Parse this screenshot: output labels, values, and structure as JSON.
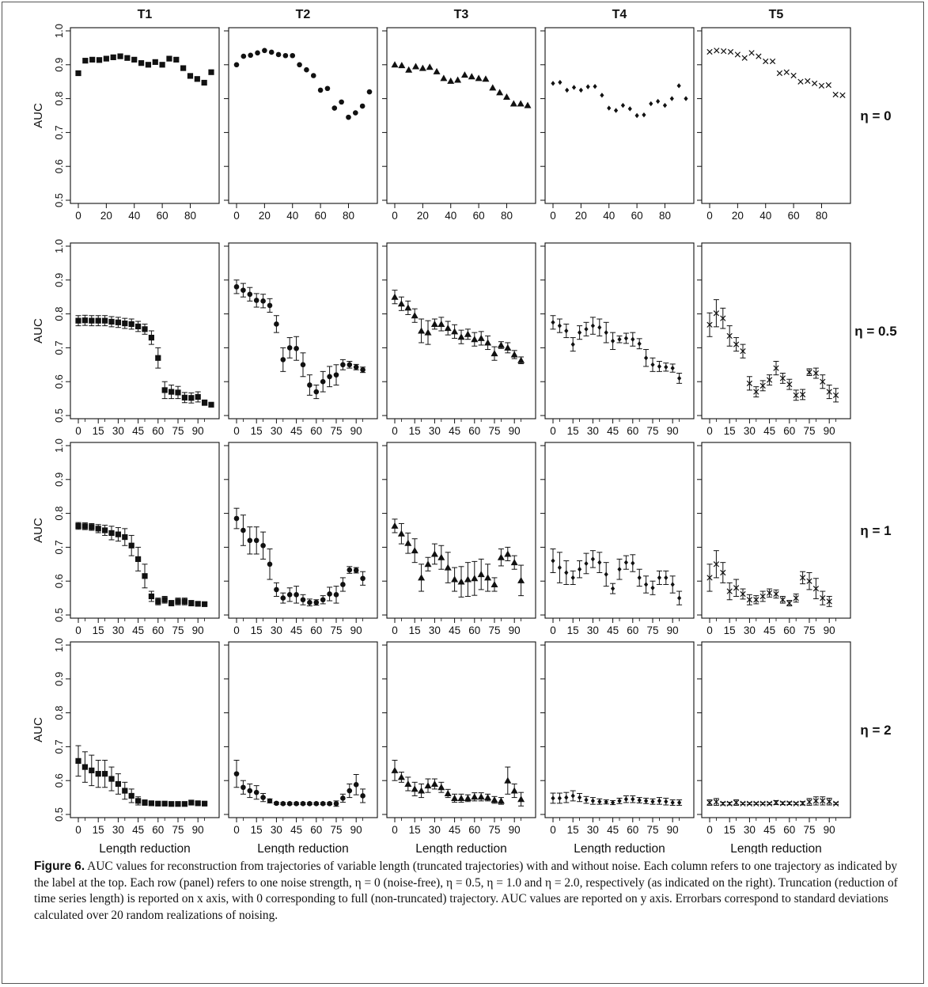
{
  "columns": [
    "T1",
    "T2",
    "T3",
    "T4",
    "T5"
  ],
  "row_labels": [
    "η = 0",
    "η = 0.5",
    "η = 1",
    "η = 2"
  ],
  "ylabel": "AUC",
  "xlabel": "Length reduction",
  "yticks": [
    "0.5",
    "0.6",
    "0.7",
    "0.8",
    "0.9",
    "1.0"
  ],
  "xticks_row0": [
    "0",
    "20",
    "40",
    "60",
    "80"
  ],
  "xticks_other": [
    "0",
    "15",
    "30",
    "45",
    "60",
    "75",
    "90"
  ],
  "caption": {
    "label": "Figure 6.",
    "text": " AUC values for reconstruction from trajectories of variable length (truncated trajectories) with and without noise. Each column refers to one trajectory as indicated by the label at the top. Each row (panel) refers to one noise strength, η = 0 (noise-free), η = 0.5, η = 1.0 and η = 2.0, respectively (as indicated on the right). Truncation (reduction of time series length) is reported on x axis, with 0 corresponding to full (non-truncated) trajectory. AUC values are reported on y axis. Errorbars correspond to standard deviations calculated over 20 random realizations of noising."
  },
  "chart_data": {
    "type": "scatter",
    "ylim": [
      0.5,
      1.0
    ],
    "x_row0": [
      0,
      5,
      10,
      15,
      20,
      25,
      30,
      35,
      40,
      45,
      50,
      55,
      60,
      65,
      70,
      75,
      80,
      85,
      90,
      95
    ],
    "x_other": [
      0,
      5,
      10,
      15,
      20,
      25,
      30,
      35,
      40,
      45,
      50,
      55,
      60,
      65,
      70,
      75,
      80,
      85,
      90,
      95,
      100
    ],
    "markers": [
      "square",
      "circle",
      "triangle",
      "diamond",
      "x"
    ],
    "panels": [
      [
        {
          "y": [
            0.875,
            0.912,
            0.915,
            0.914,
            0.918,
            0.922,
            0.925,
            0.92,
            0.915,
            0.905,
            0.9,
            0.908,
            0.9,
            0.918,
            0.915,
            0.89,
            0.867,
            0.858,
            0.847,
            0.878
          ]
        },
        {
          "y": [
            0.9,
            0.925,
            0.928,
            0.935,
            0.942,
            0.937,
            0.93,
            0.927,
            0.927,
            0.9,
            0.885,
            0.868,
            0.825,
            0.83,
            0.772,
            0.79,
            0.745,
            0.758,
            0.778,
            0.82
          ]
        },
        {
          "y": [
            0.9,
            0.898,
            0.885,
            0.895,
            0.89,
            0.893,
            0.88,
            0.86,
            0.852,
            0.855,
            0.87,
            0.865,
            0.86,
            0.858,
            0.832,
            0.818,
            0.805,
            0.785,
            0.785,
            0.78
          ]
        },
        {
          "y": [
            0.845,
            0.848,
            0.825,
            0.833,
            0.825,
            0.835,
            0.836,
            0.81,
            0.772,
            0.765,
            0.78,
            0.77,
            0.75,
            0.752,
            0.785,
            0.792,
            0.78,
            0.8,
            0.838,
            0.8
          ]
        },
        {
          "y": [
            0.938,
            0.942,
            0.94,
            0.938,
            0.93,
            0.92,
            0.935,
            0.925,
            0.91,
            0.91,
            0.875,
            0.878,
            0.868,
            0.85,
            0.852,
            0.845,
            0.838,
            0.84,
            0.812,
            0.81
          ]
        }
      ],
      [
        {
          "y": [
            0.78,
            0.781,
            0.78,
            0.78,
            0.78,
            0.777,
            0.775,
            0.772,
            0.77,
            0.763,
            0.755,
            0.73,
            0.67,
            0.575,
            0.57,
            0.568,
            0.553,
            0.552,
            0.555,
            0.538,
            0.532
          ],
          "err": [
            0.015,
            0.015,
            0.015,
            0.015,
            0.015,
            0.015,
            0.015,
            0.015,
            0.015,
            0.015,
            0.015,
            0.02,
            0.03,
            0.025,
            0.02,
            0.018,
            0.015,
            0.015,
            0.015,
            0.008,
            0.005
          ]
        },
        {
          "y": [
            0.88,
            0.87,
            0.858,
            0.84,
            0.838,
            0.825,
            0.77,
            0.665,
            0.7,
            0.698,
            0.65,
            0.59,
            0.57,
            0.6,
            0.615,
            0.62,
            0.65,
            0.65,
            0.643,
            0.635
          ],
          "err": [
            0.02,
            0.02,
            0.02,
            0.02,
            0.02,
            0.02,
            0.025,
            0.035,
            0.03,
            0.035,
            0.035,
            0.03,
            0.02,
            0.03,
            0.03,
            0.03,
            0.015,
            0.01,
            0.008,
            0.008
          ]
        },
        {
          "y": [
            0.85,
            0.83,
            0.818,
            0.795,
            0.75,
            0.745,
            0.77,
            0.77,
            0.758,
            0.748,
            0.732,
            0.74,
            0.725,
            0.728,
            0.715,
            0.683,
            0.708,
            0.7,
            0.68,
            0.663
          ],
          "err": [
            0.02,
            0.02,
            0.02,
            0.02,
            0.035,
            0.035,
            0.015,
            0.02,
            0.02,
            0.02,
            0.02,
            0.015,
            0.02,
            0.02,
            0.02,
            0.02,
            0.01,
            0.015,
            0.012,
            0.01
          ]
        },
        {
          "y": [
            0.775,
            0.765,
            0.75,
            0.71,
            0.745,
            0.755,
            0.765,
            0.76,
            0.745,
            0.72,
            0.725,
            0.728,
            0.725,
            0.712,
            0.67,
            0.65,
            0.645,
            0.643,
            0.64,
            0.61
          ],
          "err": [
            0.02,
            0.02,
            0.02,
            0.02,
            0.02,
            0.02,
            0.025,
            0.025,
            0.03,
            0.025,
            0.01,
            0.015,
            0.02,
            0.015,
            0.025,
            0.02,
            0.015,
            0.012,
            0.012,
            0.015
          ]
        },
        {
          "y": [
            0.768,
            0.802,
            0.787,
            0.735,
            0.71,
            0.69,
            0.595,
            0.57,
            0.588,
            0.605,
            0.64,
            0.61,
            0.592,
            0.56,
            0.562,
            0.628,
            0.625,
            0.6,
            0.57,
            0.56
          ],
          "err": [
            0.035,
            0.04,
            0.03,
            0.03,
            0.02,
            0.02,
            0.02,
            0.015,
            0.015,
            0.015,
            0.02,
            0.015,
            0.015,
            0.015,
            0.015,
            0.01,
            0.015,
            0.02,
            0.02,
            0.02
          ]
        }
      ],
      [
        {
          "y": [
            0.763,
            0.762,
            0.76,
            0.755,
            0.75,
            0.742,
            0.738,
            0.73,
            0.705,
            0.665,
            0.615,
            0.555,
            0.54,
            0.545,
            0.535,
            0.54,
            0.54,
            0.535,
            0.533,
            0.532
          ],
          "err": [
            0.01,
            0.01,
            0.01,
            0.012,
            0.015,
            0.02,
            0.02,
            0.025,
            0.03,
            0.035,
            0.035,
            0.015,
            0.01,
            0.01,
            0.008,
            0.01,
            0.01,
            0.008,
            0.005,
            0.004
          ]
        },
        {
          "y": [
            0.785,
            0.75,
            0.72,
            0.72,
            0.705,
            0.65,
            0.575,
            0.55,
            0.56,
            0.56,
            0.545,
            0.537,
            0.537,
            0.545,
            0.562,
            0.56,
            0.59,
            0.633,
            0.632,
            0.608
          ],
          "err": [
            0.03,
            0.045,
            0.04,
            0.04,
            0.04,
            0.045,
            0.02,
            0.015,
            0.02,
            0.025,
            0.015,
            0.01,
            0.008,
            0.012,
            0.02,
            0.025,
            0.02,
            0.01,
            0.008,
            0.02
          ]
        },
        {
          "y": [
            0.763,
            0.74,
            0.712,
            0.69,
            0.61,
            0.65,
            0.68,
            0.67,
            0.64,
            0.605,
            0.598,
            0.605,
            0.608,
            0.62,
            0.61,
            0.59,
            0.67,
            0.68,
            0.655,
            0.602
          ],
          "err": [
            0.02,
            0.03,
            0.03,
            0.035,
            0.04,
            0.02,
            0.03,
            0.035,
            0.045,
            0.035,
            0.045,
            0.05,
            0.05,
            0.045,
            0.04,
            0.02,
            0.025,
            0.02,
            0.02,
            0.045
          ]
        },
        {
          "y": [
            0.66,
            0.64,
            0.625,
            0.61,
            0.635,
            0.652,
            0.665,
            0.655,
            0.62,
            0.578,
            0.635,
            0.655,
            0.653,
            0.61,
            0.59,
            0.58,
            0.61,
            0.61,
            0.59,
            0.55
          ],
          "err": [
            0.035,
            0.045,
            0.035,
            0.02,
            0.025,
            0.03,
            0.025,
            0.03,
            0.035,
            0.015,
            0.03,
            0.02,
            0.025,
            0.025,
            0.025,
            0.02,
            0.02,
            0.02,
            0.025,
            0.02
          ]
        },
        {
          "y": [
            0.61,
            0.65,
            0.625,
            0.57,
            0.58,
            0.562,
            0.545,
            0.545,
            0.555,
            0.565,
            0.562,
            0.545,
            0.535,
            0.55,
            0.61,
            0.6,
            0.578,
            0.55,
            0.54
          ],
          "err": [
            0.04,
            0.04,
            0.03,
            0.025,
            0.025,
            0.015,
            0.015,
            0.012,
            0.015,
            0.012,
            0.012,
            0.01,
            0.008,
            0.012,
            0.018,
            0.025,
            0.03,
            0.02,
            0.015
          ]
        }
      ],
      [
        {
          "y": [
            0.658,
            0.64,
            0.63,
            0.62,
            0.62,
            0.605,
            0.59,
            0.57,
            0.555,
            0.54,
            0.535,
            0.533,
            0.532,
            0.532,
            0.531,
            0.531,
            0.531,
            0.535,
            0.533,
            0.532
          ],
          "err": [
            0.045,
            0.045,
            0.045,
            0.04,
            0.04,
            0.035,
            0.03,
            0.025,
            0.02,
            0.012,
            0.008,
            0.005,
            0.004,
            0.003,
            0.003,
            0.003,
            0.003,
            0.004,
            0.004,
            0.004
          ]
        },
        {
          "y": [
            0.62,
            0.58,
            0.57,
            0.565,
            0.55,
            0.54,
            0.533,
            0.532,
            0.532,
            0.532,
            0.532,
            0.532,
            0.532,
            0.532,
            0.532,
            0.532,
            0.548,
            0.57,
            0.588,
            0.555
          ],
          "err": [
            0.04,
            0.02,
            0.02,
            0.02,
            0.012,
            0.006,
            0.003,
            0.003,
            0.003,
            0.003,
            0.003,
            0.003,
            0.003,
            0.003,
            0.003,
            0.008,
            0.012,
            0.02,
            0.03,
            0.02
          ]
        },
        {
          "y": [
            0.63,
            0.61,
            0.59,
            0.575,
            0.57,
            0.585,
            0.59,
            0.58,
            0.562,
            0.548,
            0.548,
            0.548,
            0.552,
            0.552,
            0.55,
            0.543,
            0.54,
            0.6,
            0.57,
            0.545
          ],
          "err": [
            0.03,
            0.015,
            0.02,
            0.02,
            0.02,
            0.02,
            0.015,
            0.015,
            0.012,
            0.012,
            0.012,
            0.01,
            0.012,
            0.012,
            0.01,
            0.01,
            0.01,
            0.04,
            0.02,
            0.02
          ]
        },
        {
          "y": [
            0.548,
            0.548,
            0.55,
            0.555,
            0.55,
            0.543,
            0.54,
            0.538,
            0.537,
            0.535,
            0.54,
            0.545,
            0.545,
            0.542,
            0.54,
            0.538,
            0.54,
            0.538,
            0.535,
            0.535
          ],
          "err": [
            0.015,
            0.015,
            0.015,
            0.015,
            0.012,
            0.01,
            0.01,
            0.008,
            0.006,
            0.006,
            0.008,
            0.01,
            0.01,
            0.008,
            0.008,
            0.008,
            0.01,
            0.01,
            0.008,
            0.008
          ]
        },
        {
          "y": [
            0.535,
            0.537,
            0.532,
            0.532,
            0.535,
            0.532,
            0.532,
            0.532,
            0.532,
            0.532,
            0.535,
            0.533,
            0.533,
            0.532,
            0.533,
            0.537,
            0.54,
            0.54,
            0.538,
            0.532
          ],
          "err": [
            0.008,
            0.01,
            0.004,
            0.004,
            0.008,
            0.003,
            0.003,
            0.003,
            0.003,
            0.003,
            0.006,
            0.004,
            0.004,
            0.003,
            0.005,
            0.01,
            0.012,
            0.012,
            0.01,
            0.003
          ]
        }
      ]
    ]
  }
}
